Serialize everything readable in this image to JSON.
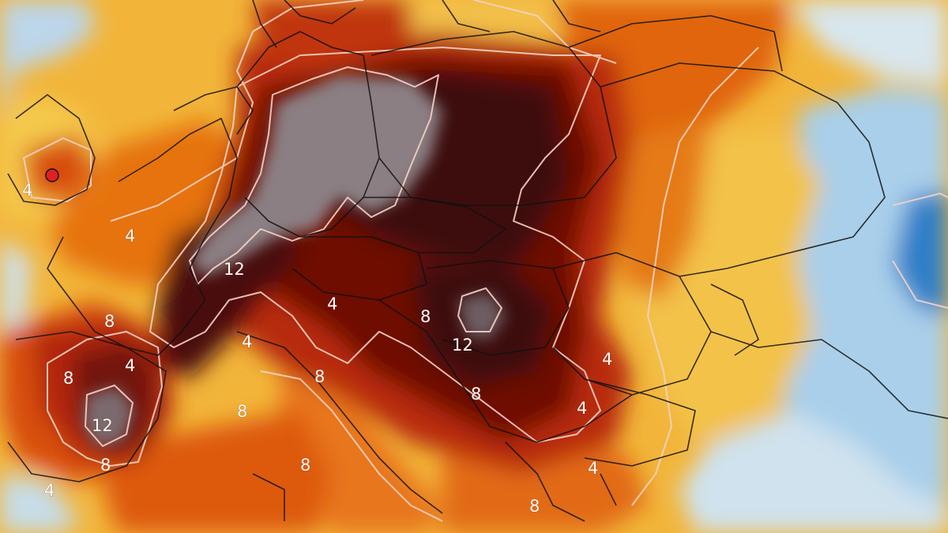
{
  "map": {
    "type": "temperature-anomaly-heatmap",
    "palette": {
      "extreme": "#3a0808",
      "very-hot": "#7a1006",
      "hot": "#b82a08",
      "warm": "#e0640f",
      "mild": "#f2a426",
      "slightly-warm": "#f5cd4e",
      "neutral": "#f8e8a0",
      "cool": "#a8d0ee",
      "cold": "#2f7fc8",
      "peak-overlay": "#8a7f82",
      "contour": "#f6d8cf",
      "border": "#111111"
    },
    "contour_labels": [
      {
        "id": "c12-central",
        "text": "12"
      },
      {
        "id": "c12-hungary",
        "text": "12"
      },
      {
        "id": "c12-spain",
        "text": "12"
      },
      {
        "id": "c8-spain-north",
        "text": "8"
      },
      {
        "id": "c8-spain-west",
        "text": "8"
      },
      {
        "id": "c8-spain-south",
        "text": "8"
      },
      {
        "id": "c8-croatia",
        "text": "8"
      },
      {
        "id": "c8-balkans",
        "text": "8"
      },
      {
        "id": "c8-italy-north",
        "text": "8"
      },
      {
        "id": "c8-italy-south",
        "text": "8"
      },
      {
        "id": "c8-alps",
        "text": "8"
      },
      {
        "id": "c8-greece",
        "text": "8"
      },
      {
        "id": "c4-france",
        "text": "4"
      },
      {
        "id": "c4-alps",
        "text": "4"
      },
      {
        "id": "c4-austria",
        "text": "4"
      },
      {
        "id": "c4-romania",
        "text": "4"
      },
      {
        "id": "c4-bulgaria",
        "text": "4"
      },
      {
        "id": "c4-spain-edge",
        "text": "4"
      },
      {
        "id": "c4-sw",
        "text": "4"
      },
      {
        "id": "c4-uk",
        "text": "4"
      },
      {
        "id": "c4-spain-mid",
        "text": "4"
      }
    ]
  }
}
